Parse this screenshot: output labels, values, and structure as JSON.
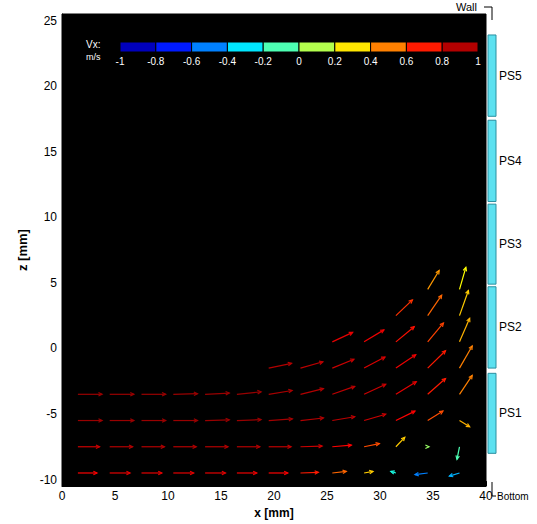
{
  "chart_data": {
    "type": "vector",
    "xlabel": "x [mm]",
    "ylabel": "z [mm]",
    "xlim": [
      0,
      40
    ],
    "xticks": [
      0,
      5,
      10,
      15,
      20,
      25,
      30,
      35,
      40
    ],
    "ylim": [
      -10.5,
      25.5
    ],
    "yticks": [
      -10,
      -5,
      0,
      5,
      10,
      15,
      20,
      25
    ],
    "colorbar": {
      "label": "Vx:",
      "unit": "m/s",
      "range": [
        -1,
        1
      ],
      "ticks": [
        -1,
        -0.8,
        -0.6,
        -0.4,
        -0.2,
        0,
        0.2,
        0.4,
        0.6,
        0.8,
        1
      ]
    },
    "vectors": [
      [
        1.5,
        -9.5,
        0.75,
        0
      ],
      [
        4.5,
        -9.5,
        0.8,
        0
      ],
      [
        7.5,
        -9.5,
        0.8,
        0
      ],
      [
        10.5,
        -9.5,
        0.8,
        0
      ],
      [
        13.5,
        -9.5,
        0.8,
        0
      ],
      [
        16.5,
        -9.5,
        0.78,
        0
      ],
      [
        19.5,
        -9.5,
        0.75,
        0
      ],
      [
        22.5,
        -9.5,
        0.7,
        0.02
      ],
      [
        25.5,
        -9.5,
        0.55,
        0.05
      ],
      [
        28.5,
        -9.5,
        0.35,
        0.05
      ],
      [
        31.5,
        -9.5,
        -0.2,
        0.05
      ],
      [
        34.5,
        -9.5,
        -0.5,
        -0.05
      ],
      [
        37.5,
        -9.5,
        -0.4,
        -0.1
      ],
      [
        1.5,
        -7.5,
        0.85,
        0
      ],
      [
        4.5,
        -7.5,
        0.9,
        0
      ],
      [
        7.5,
        -7.5,
        0.9,
        0
      ],
      [
        10.5,
        -7.5,
        0.9,
        0
      ],
      [
        13.5,
        -7.5,
        0.9,
        0
      ],
      [
        16.5,
        -7.5,
        0.9,
        0
      ],
      [
        19.5,
        -7.5,
        0.88,
        0
      ],
      [
        22.5,
        -7.5,
        0.85,
        0.02
      ],
      [
        25.5,
        -7.5,
        0.75,
        0.05
      ],
      [
        28.5,
        -7.5,
        0.6,
        0.1
      ],
      [
        31.5,
        -7.5,
        0.35,
        0.3
      ],
      [
        34.5,
        -7.5,
        0.05,
        0
      ],
      [
        37.5,
        -7.5,
        -0.1,
        -0.4
      ],
      [
        1.5,
        -5.5,
        0.95,
        0
      ],
      [
        4.5,
        -5.5,
        0.95,
        0
      ],
      [
        7.5,
        -5.5,
        0.95,
        0
      ],
      [
        10.5,
        -5.5,
        0.95,
        0
      ],
      [
        13.5,
        -5.5,
        0.95,
        0.02
      ],
      [
        16.5,
        -5.5,
        0.95,
        0.03
      ],
      [
        19.5,
        -5.5,
        0.93,
        0.05
      ],
      [
        22.5,
        -5.5,
        0.9,
        0.08
      ],
      [
        25.5,
        -5.5,
        0.88,
        0.12
      ],
      [
        28.5,
        -5.5,
        0.85,
        0.2
      ],
      [
        31.5,
        -5.5,
        0.75,
        0.3
      ],
      [
        34.5,
        -5.5,
        0.6,
        0.3
      ],
      [
        37.5,
        -5.5,
        0.4,
        -0.2
      ],
      [
        1.5,
        -3.5,
        0.95,
        0
      ],
      [
        4.5,
        -3.5,
        0.95,
        0
      ],
      [
        7.5,
        -3.5,
        0.95,
        0
      ],
      [
        10.5,
        -3.5,
        0.95,
        0.02
      ],
      [
        13.5,
        -3.5,
        0.95,
        0.04
      ],
      [
        16.5,
        -3.5,
        0.95,
        0.08
      ],
      [
        19.5,
        -3.5,
        0.92,
        0.12
      ],
      [
        22.5,
        -3.5,
        0.9,
        0.18
      ],
      [
        25.5,
        -3.5,
        0.88,
        0.25
      ],
      [
        28.5,
        -3.5,
        0.85,
        0.32
      ],
      [
        31.5,
        -3.5,
        0.8,
        0.4
      ],
      [
        34.5,
        -3.5,
        0.7,
        0.5
      ],
      [
        37.5,
        -3.5,
        0.5,
        0.6
      ],
      [
        19.5,
        -1.5,
        0.9,
        0.15
      ],
      [
        22.5,
        -1.5,
        0.88,
        0.2
      ],
      [
        25.5,
        -1.5,
        0.85,
        0.28
      ],
      [
        28.5,
        -1.5,
        0.82,
        0.35
      ],
      [
        31.5,
        -1.5,
        0.78,
        0.42
      ],
      [
        34.5,
        -1.5,
        0.7,
        0.55
      ],
      [
        37.5,
        -1.5,
        0.5,
        0.7
      ],
      [
        25.5,
        0.5,
        0.8,
        0.3
      ],
      [
        28.5,
        0.5,
        0.78,
        0.38
      ],
      [
        31.5,
        0.5,
        0.72,
        0.48
      ],
      [
        34.5,
        0.5,
        0.62,
        0.6
      ],
      [
        37.5,
        0.5,
        0.4,
        0.75
      ],
      [
        31.5,
        2.5,
        0.65,
        0.5
      ],
      [
        34.5,
        2.5,
        0.55,
        0.65
      ],
      [
        37.5,
        2.5,
        0.35,
        0.8
      ],
      [
        34.5,
        4.5,
        0.45,
        0.6
      ],
      [
        37.5,
        4.5,
        0.25,
        0.7
      ]
    ],
    "sensors": [
      {
        "label": "PS1",
        "z": [
          -8,
          -1.9
        ]
      },
      {
        "label": "PS2",
        "z": [
          -1.5,
          4.7
        ]
      },
      {
        "label": "PS3",
        "z": [
          4.9,
          11
        ]
      },
      {
        "label": "PS4",
        "z": [
          11.2,
          17.4
        ]
      },
      {
        "label": "PS5",
        "z": [
          17.7,
          23.9
        ]
      }
    ],
    "annotations": [
      "Wall",
      "Bottom"
    ]
  }
}
